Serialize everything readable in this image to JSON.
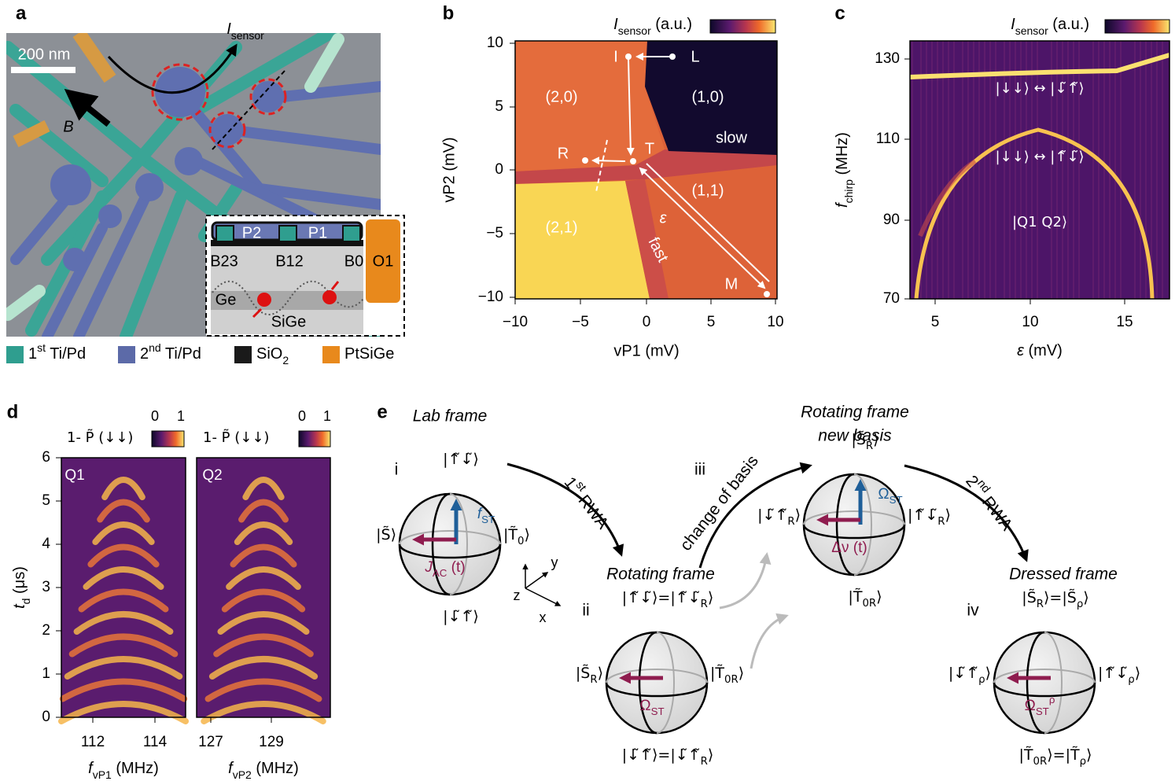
{
  "panel_a": {
    "label": "a",
    "current": [
      "I",
      {
        "sub": "sensor"
      }
    ],
    "scale_bar": "200 nm",
    "field": "B",
    "inset": {
      "gates": [
        "P2",
        "P1"
      ],
      "barriers": [
        "B23",
        "B12",
        "B0"
      ],
      "ohmic": "O1",
      "layers": [
        "Ge",
        "SiGe"
      ]
    },
    "legend": [
      {
        "text": [
          "1",
          {
            "sup": "st"
          },
          " Ti/Pd"
        ],
        "color": "#2f9e8f"
      },
      {
        "text": [
          "2",
          {
            "sup": "nd"
          },
          " Ti/Pd"
        ],
        "color": "#5c6aa8"
      },
      {
        "text": [
          "SiO",
          {
            "sub": "2"
          }
        ],
        "color": "#1a1a1a"
      },
      {
        "text": [
          "PtSiGe"
        ],
        "color": "#e8891c"
      }
    ]
  },
  "panel_b": {
    "label": "b",
    "colorbar": [
      "I",
      {
        "sub": "sensor"
      },
      " (a.u.)"
    ],
    "x_label": "vP1 (mV)",
    "y_label": "vP2 (mV)",
    "x_ticks": [
      "−10",
      "−5",
      "0",
      "5",
      "10"
    ],
    "y_ticks": [
      "10",
      "5",
      "0",
      "−5",
      "−10"
    ],
    "regions": [
      "(2,0)",
      "(1,0)",
      "(1,1)",
      "(2,1)"
    ],
    "points": [
      "I",
      "L",
      "T",
      "R",
      "M"
    ],
    "annotations": {
      "slow": "slow",
      "fast": "fast",
      "detuning": "ε"
    }
  },
  "panel_c": {
    "label": "c",
    "colorbar": [
      "I",
      {
        "sub": "sensor"
      },
      " (a.u.)"
    ],
    "x_label": [
      "ε",
      " (mV)"
    ],
    "y_label": [
      "f",
      {
        "sub": "chirp"
      },
      " (MHz)"
    ],
    "x_ticks": [
      "5",
      "10",
      "15"
    ],
    "y_ticks": [
      "130",
      "110",
      "90",
      "70"
    ],
    "states": [
      "|↓↓⟩ ↔ |↓̃↑̃⟩",
      "|↓↓⟩ ↔ |↑̃↓̃⟩",
      "|Q1 Q2⟩"
    ]
  },
  "panel_d": {
    "label": "d",
    "colorbar_label": "1- P̃ (↓↓)",
    "colorbar_ticks": [
      "0",
      "1"
    ],
    "y_label": [
      "t",
      {
        "sub": "d"
      },
      " (μs)"
    ],
    "y_ticks": [
      "6",
      "5",
      "4",
      "3",
      "2",
      "1",
      "0"
    ],
    "maps": [
      {
        "name": "Q1",
        "x_ticks": [
          "112",
          "114"
        ],
        "x_label": [
          "f",
          {
            "sub": "vP1"
          },
          " (MHz)"
        ]
      },
      {
        "name": "Q2",
        "x_ticks": [
          "127",
          "129"
        ],
        "x_label": [
          "f",
          {
            "sub": "vP2"
          },
          " (MHz)"
        ]
      }
    ]
  },
  "panel_e": {
    "label": "e",
    "frames": {
      "lab": "Lab frame",
      "rotating": "Rotating frame",
      "new_basis": [
        "Rotating frame",
        "new basis"
      ],
      "dressed": "Dressed frame"
    },
    "numerals": [
      "i",
      "ii",
      "iii",
      "iv"
    ],
    "transitions": [
      [
        "1",
        {
          "sup": "st"
        },
        " RWA"
      ],
      [
        "change of basis"
      ],
      [
        "2",
        {
          "sup": "nd"
        },
        " RWA"
      ]
    ],
    "axes": [
      "z",
      "y",
      "x"
    ],
    "spheres": [
      {
        "top": [
          "|↑̃↓̃⟩"
        ],
        "left": [
          "|S̃⟩"
        ],
        "right": [
          "|T̃",
          {
            "sub": "0"
          },
          "⟩"
        ],
        "bottom": [
          "|↓̃↑̃⟩"
        ],
        "blue": [
          "f",
          {
            "sub": "ST"
          }
        ],
        "purple": [
          "J",
          {
            "sub": "AC"
          },
          " (t)"
        ]
      },
      {
        "top": [
          "|↑̃↓̃⟩=|↑̃↓̃",
          {
            "sub": "R"
          },
          "⟩"
        ],
        "left": [
          "|S̃",
          {
            "sub": "R"
          },
          "⟩"
        ],
        "right": [
          "|T̃",
          {
            "sub": "0R"
          },
          "⟩"
        ],
        "bottom": [
          "|↓̃↑̃⟩=|↓̃↑̃",
          {
            "sub": "R"
          },
          "⟩"
        ],
        "purple": [
          "Ω",
          {
            "sub": "ST"
          }
        ]
      },
      {
        "top": [
          "|S̃",
          {
            "sub": "R"
          },
          "⟩"
        ],
        "left": [
          "|↓̃↑̃",
          {
            "sub": "R"
          },
          "⟩"
        ],
        "right": [
          "|↑̃↓̃",
          {
            "sub": "R"
          },
          "⟩"
        ],
        "bottom": [
          "|T̃",
          {
            "sub": "0R"
          },
          "⟩"
        ],
        "blue": [
          "Ω",
          {
            "sub": "ST"
          }
        ],
        "purple": [
          "Δν (t)"
        ]
      },
      {
        "top": [
          "|S̃",
          {
            "sub": "R"
          },
          "⟩=|S̃",
          {
            "sub": "ρ"
          },
          "⟩"
        ],
        "left": [
          "|↓̃↑̃",
          {
            "sub": "ρ"
          },
          "⟩"
        ],
        "right": [
          "|↑̃↓̃",
          {
            "sub": "ρ"
          },
          "⟩"
        ],
        "bottom": [
          "|T̃",
          {
            "sub": "0R"
          },
          "⟩=|T̃",
          {
            "sub": "ρ"
          },
          "⟩"
        ],
        "purple": [
          "Ω",
          {
            "sub": "ST"
          },
          {
            "sup": "ρ"
          }
        ]
      }
    ]
  }
}
